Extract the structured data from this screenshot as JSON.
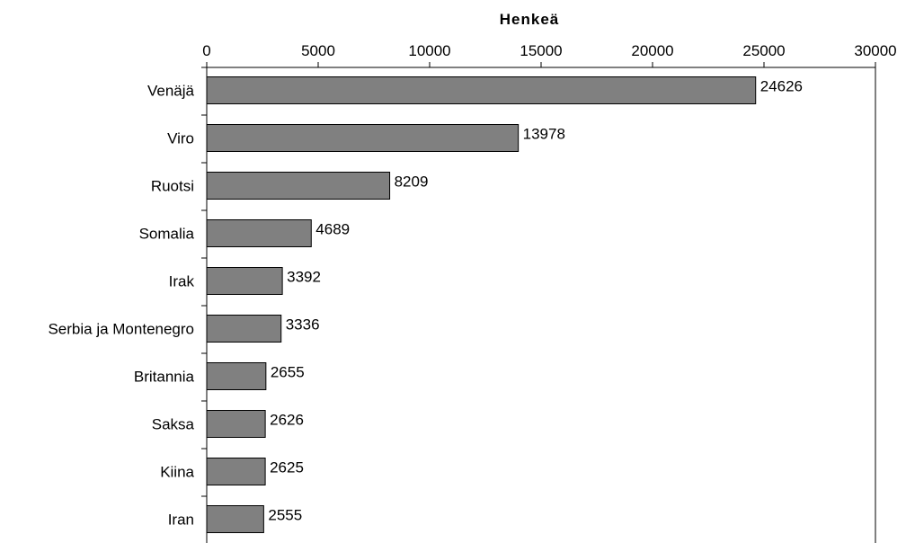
{
  "chart_data": {
    "type": "bar",
    "orientation": "horizontal",
    "title": "",
    "xlabel": "Henkeä",
    "ylabel": "",
    "xaxis_position": "top",
    "xlim": [
      0,
      30000
    ],
    "xticks": [
      0,
      5000,
      10000,
      15000,
      20000,
      25000,
      30000
    ],
    "grid": false,
    "legend": "none",
    "bar_color": "#808080",
    "bar_edge_color": "#000000",
    "categories": [
      "Venäjä",
      "Viro",
      "Ruotsi",
      "Somalia",
      "Irak",
      "Serbia ja Montenegro",
      "Britannia",
      "Saksa",
      "Kiina",
      "Iran"
    ],
    "values": [
      24626,
      13978,
      8209,
      4689,
      3392,
      3336,
      2655,
      2626,
      2625,
      2555
    ]
  }
}
